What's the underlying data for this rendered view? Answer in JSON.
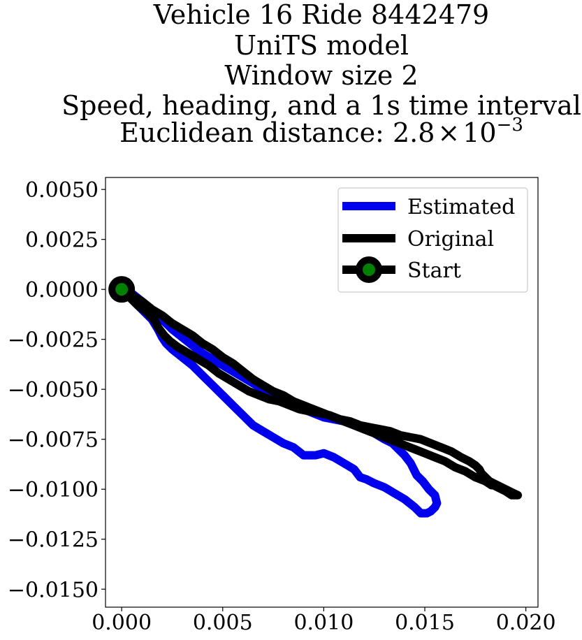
{
  "chart_data": {
    "type": "line",
    "title_lines": [
      "Vehicle 16 Ride 8442479",
      "UniTS model",
      "Window size 2",
      "Speed, heading, and a 1s time interval"
    ],
    "title_distance_prefix": "Euclidean distance: ",
    "title_distance_mantissa": "2.8",
    "title_distance_times": "×",
    "title_distance_base": "10",
    "title_distance_exponent": "−3",
    "xlabel": "",
    "ylabel": "",
    "xlim": [
      -0.0008,
      0.0206
    ],
    "ylim": [
      -0.0159,
      0.0056
    ],
    "x_ticks": [
      0.0,
      0.005,
      0.01,
      0.015,
      0.02
    ],
    "x_tick_labels": [
      "0.000",
      "0.005",
      "0.010",
      "0.015",
      "0.020"
    ],
    "y_ticks": [
      0.005,
      0.0025,
      0.0,
      -0.0025,
      -0.005,
      -0.0075,
      -0.01,
      -0.0125,
      -0.015
    ],
    "y_tick_labels": [
      "0.0050",
      "0.0025",
      "0.0000",
      "−0.0025",
      "−0.0050",
      "−0.0075",
      "−0.0100",
      "−0.0125",
      "−0.0150"
    ],
    "grid": false,
    "legend_position": "top-right",
    "colors": {
      "estimated": "#0000ee",
      "original": "#000000",
      "start_marker_fill": "#008000"
    },
    "series": [
      {
        "name": "Estimated",
        "x": [
          0.0,
          0.0005,
          0.001,
          0.0015,
          0.0018,
          0.002,
          0.0022,
          0.0025,
          0.003,
          0.0035,
          0.004,
          0.0045,
          0.005,
          0.0055,
          0.006,
          0.0065,
          0.007,
          0.0075,
          0.008,
          0.0085,
          0.009,
          0.0093,
          0.0096,
          0.01,
          0.0105,
          0.011,
          0.0115,
          0.0118,
          0.0121,
          0.0125,
          0.013,
          0.0135,
          0.014,
          0.0145,
          0.0148,
          0.0151,
          0.0153,
          0.0155,
          0.0156,
          0.0155,
          0.0152,
          0.0149,
          0.0146,
          0.0143,
          0.014,
          0.0137,
          0.0134,
          0.013,
          0.0125,
          0.012,
          0.0115,
          0.011,
          0.0105,
          0.01,
          0.0095,
          0.009,
          0.0085,
          0.008,
          0.0075,
          0.007,
          0.0065,
          0.006,
          0.0055,
          0.005,
          0.0045,
          0.004,
          0.0035,
          0.003,
          0.0025,
          0.002,
          0.0015,
          0.001,
          0.0005,
          0.0
        ],
        "y": [
          0.0,
          -0.0005,
          -0.001,
          -0.0015,
          -0.002,
          -0.0024,
          -0.0027,
          -0.003,
          -0.0034,
          -0.0038,
          -0.0043,
          -0.0048,
          -0.0053,
          -0.0058,
          -0.0063,
          -0.0068,
          -0.0071,
          -0.0074,
          -0.0077,
          -0.0079,
          -0.0083,
          -0.0083,
          -0.0083,
          -0.0082,
          -0.0084,
          -0.0087,
          -0.009,
          -0.0094,
          -0.0095,
          -0.0097,
          -0.0099,
          -0.0102,
          -0.0105,
          -0.0109,
          -0.0112,
          -0.0112,
          -0.0111,
          -0.0109,
          -0.0107,
          -0.0103,
          -0.01,
          -0.0096,
          -0.0093,
          -0.0087,
          -0.0083,
          -0.008,
          -0.0077,
          -0.0075,
          -0.0072,
          -0.007,
          -0.0068,
          -0.0066,
          -0.0065,
          -0.0064,
          -0.0062,
          -0.006,
          -0.0058,
          -0.0056,
          -0.0053,
          -0.005,
          -0.0047,
          -0.0044,
          -0.0041,
          -0.0038,
          -0.0035,
          -0.0032,
          -0.0028,
          -0.0024,
          -0.002,
          -0.0015,
          -0.001,
          -0.0006,
          -0.0002,
          0.0
        ]
      },
      {
        "name": "Original",
        "x": [
          0.0,
          0.0004,
          0.0008,
          0.0012,
          0.0016,
          0.0018,
          0.0021,
          0.0024,
          0.0028,
          0.0033,
          0.0038,
          0.0043,
          0.0048,
          0.0053,
          0.0058,
          0.0063,
          0.0068,
          0.0073,
          0.0078,
          0.0083,
          0.0088,
          0.0093,
          0.0098,
          0.0103,
          0.0108,
          0.0113,
          0.0118,
          0.0123,
          0.0128,
          0.0133,
          0.0138,
          0.0143,
          0.0148,
          0.0153,
          0.0158,
          0.0163,
          0.0168,
          0.0172,
          0.0175,
          0.0177,
          0.0178,
          0.0179,
          0.018,
          0.0182,
          0.0186,
          0.019,
          0.0194,
          0.0196,
          0.0196,
          0.0193,
          0.019,
          0.0186,
          0.0184,
          0.0183,
          0.018,
          0.0175,
          0.017,
          0.0165,
          0.016,
          0.0155,
          0.015,
          0.0145,
          0.014,
          0.0135,
          0.013,
          0.0125,
          0.012,
          0.0115,
          0.011,
          0.0105,
          0.01,
          0.0095,
          0.009,
          0.0085,
          0.008,
          0.0075,
          0.007,
          0.0065,
          0.006,
          0.0055,
          0.005,
          0.0045,
          0.004,
          0.0035,
          0.003,
          0.0025,
          0.002,
          0.0015,
          0.001,
          0.0005,
          0.0
        ],
        "y": [
          0.0,
          -0.0004,
          -0.0008,
          -0.0011,
          -0.0015,
          -0.0019,
          -0.0023,
          -0.0026,
          -0.0029,
          -0.0032,
          -0.0035,
          -0.0038,
          -0.0042,
          -0.0045,
          -0.0048,
          -0.0051,
          -0.0053,
          -0.0055,
          -0.0056,
          -0.0058,
          -0.006,
          -0.0061,
          -0.0062,
          -0.0063,
          -0.0065,
          -0.0066,
          -0.0068,
          -0.0069,
          -0.007,
          -0.0071,
          -0.0073,
          -0.0074,
          -0.0075,
          -0.0077,
          -0.0079,
          -0.0081,
          -0.0084,
          -0.0086,
          -0.0088,
          -0.009,
          -0.0092,
          -0.0093,
          -0.0094,
          -0.0096,
          -0.0098,
          -0.01,
          -0.0102,
          -0.0103,
          -0.0103,
          -0.0103,
          -0.0101,
          -0.0099,
          -0.0098,
          -0.0098,
          -0.0096,
          -0.0094,
          -0.0091,
          -0.0089,
          -0.0086,
          -0.0084,
          -0.0082,
          -0.008,
          -0.0078,
          -0.0076,
          -0.0074,
          -0.0072,
          -0.007,
          -0.0068,
          -0.0066,
          -0.0064,
          -0.0062,
          -0.006,
          -0.0058,
          -0.0056,
          -0.0053,
          -0.0051,
          -0.0048,
          -0.0045,
          -0.0041,
          -0.0037,
          -0.0034,
          -0.003,
          -0.0027,
          -0.0023,
          -0.002,
          -0.0017,
          -0.0013,
          -0.001,
          -0.0006,
          -0.0003,
          0.0
        ]
      },
      {
        "name": "Start",
        "x": [
          0.0
        ],
        "y": [
          0.0
        ]
      }
    ]
  }
}
